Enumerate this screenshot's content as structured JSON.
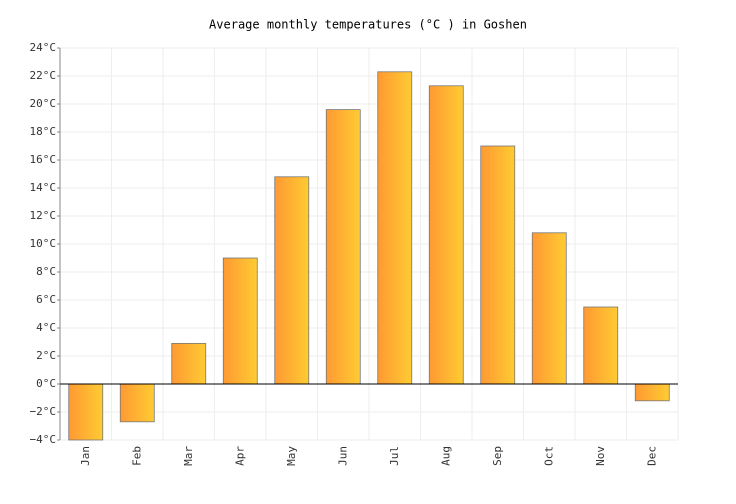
{
  "chart_data": {
    "type": "bar",
    "title": "Average monthly temperatures (°C ) in Goshen",
    "categories": [
      "Jan",
      "Feb",
      "Mar",
      "Apr",
      "May",
      "Jun",
      "Jul",
      "Aug",
      "Sep",
      "Oct",
      "Nov",
      "Dec"
    ],
    "values": [
      -4.0,
      -2.7,
      2.9,
      9.0,
      14.8,
      19.6,
      22.3,
      21.3,
      17.0,
      10.8,
      5.5,
      -1.2
    ],
    "gradient": [
      "#ff9933",
      "#ffcc33"
    ],
    "ylim": [
      -4,
      24
    ],
    "yticks": [
      {
        "value": -4,
        "label": "−4°C"
      },
      {
        "value": -2,
        "label": "−2°C"
      },
      {
        "value": 0,
        "label": "0°C"
      },
      {
        "value": 2,
        "label": "2°C"
      },
      {
        "value": 4,
        "label": "4°C"
      },
      {
        "value": 6,
        "label": "6°C"
      },
      {
        "value": 8,
        "label": "8°C"
      },
      {
        "value": 10,
        "label": "10°C"
      },
      {
        "value": 12,
        "label": "12°C"
      },
      {
        "value": 14,
        "label": "14°C"
      },
      {
        "value": 16,
        "label": "16°C"
      },
      {
        "value": 18,
        "label": "18°C"
      },
      {
        "value": 20,
        "label": "20°C"
      },
      {
        "value": 22,
        "label": "22°C"
      },
      {
        "value": 24,
        "label": "24°C"
      }
    ],
    "grid": true
  }
}
